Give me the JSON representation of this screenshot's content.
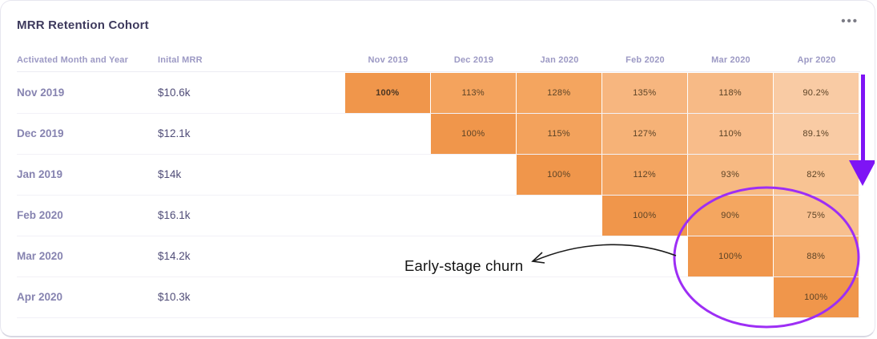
{
  "card": {
    "title": "MRR Retention Cohort",
    "menu_glyph": "•••"
  },
  "table": {
    "activated_header": "Activated Month and Year",
    "mrr_header": "Inital MRR",
    "month_headers": [
      "Nov 2019",
      "Dec 2019",
      "Jan 2020",
      "Feb 2020",
      "Mar 2020",
      "Apr 2020"
    ],
    "rows": [
      {
        "label": "Nov 2019",
        "mrr": "$10.6k",
        "cells": [
          {
            "col": 0,
            "value": "100%",
            "color": "#F0964B",
            "bold": true
          },
          {
            "col": 1,
            "value": "113%",
            "color": "#F4A35D",
            "bold": false
          },
          {
            "col": 2,
            "value": "128%",
            "color": "#F4A55F",
            "bold": false
          },
          {
            "col": 3,
            "value": "135%",
            "color": "#F7B67F",
            "bold": false
          },
          {
            "col": 4,
            "value": "118%",
            "color": "#F7BA86",
            "bold": false
          },
          {
            "col": 5,
            "value": "90.2%",
            "color": "#F9CBA4",
            "bold": false
          }
        ]
      },
      {
        "label": "Dec 2019",
        "mrr": "$12.1k",
        "cells": [
          {
            "col": 1,
            "value": "100%",
            "color": "#F0964B",
            "bold": false
          },
          {
            "col": 2,
            "value": "115%",
            "color": "#F3A25C",
            "bold": false
          },
          {
            "col": 3,
            "value": "127%",
            "color": "#F6B277",
            "bold": false
          },
          {
            "col": 4,
            "value": "110%",
            "color": "#F8BC8A",
            "bold": false
          },
          {
            "col": 5,
            "value": "89.1%",
            "color": "#F9CBA4",
            "bold": false
          }
        ]
      },
      {
        "label": "Jan 2019",
        "mrr": "$14k",
        "cells": [
          {
            "col": 2,
            "value": "100%",
            "color": "#F0964B",
            "bold": false
          },
          {
            "col": 3,
            "value": "112%",
            "color": "#F4A561",
            "bold": false
          },
          {
            "col": 4,
            "value": "93%",
            "color": "#F7B982",
            "bold": false
          },
          {
            "col": 5,
            "value": "82%",
            "color": "#F8C393",
            "bold": false
          }
        ]
      },
      {
        "label": "Feb 2020",
        "mrr": "$16.1k",
        "cells": [
          {
            "col": 3,
            "value": "100%",
            "color": "#F0964B",
            "bold": false
          },
          {
            "col": 4,
            "value": "90%",
            "color": "#F4A660",
            "bold": false
          },
          {
            "col": 5,
            "value": "75%",
            "color": "#F8BF8E",
            "bold": false
          }
        ]
      },
      {
        "label": "Mar 2020",
        "mrr": "$14.2k",
        "cells": [
          {
            "col": 4,
            "value": "100%",
            "color": "#F0964B",
            "bold": false
          },
          {
            "col": 5,
            "value": "88%",
            "color": "#F5AB6A",
            "bold": false
          }
        ]
      },
      {
        "label": "Apr 2020",
        "mrr": "$10.3k",
        "cells": [
          {
            "col": 5,
            "value": "100%",
            "color": "#F0964B",
            "bold": false
          }
        ]
      }
    ]
  },
  "annotation": {
    "label": "Early-stage churn"
  },
  "colors": {
    "arrow_purple": "#7E14F5",
    "ellipse_purple": "#9D2EF5",
    "annotation_black": "#1a1a1a",
    "cell_dark_orange": "#F0964B",
    "cell_light_orange": "#F9CBA4"
  },
  "chart_data": {
    "type": "heatmap",
    "title": "MRR Retention Cohort",
    "row_label_header": "Activated Month and Year",
    "row_value_header": "Inital MRR",
    "columns": [
      "Nov 2019",
      "Dec 2019",
      "Jan 2020",
      "Feb 2020",
      "Mar 2020",
      "Apr 2020"
    ],
    "rows": [
      {
        "label": "Nov 2019",
        "initial_mrr": "$10.6k",
        "values": [
          100,
          113,
          128,
          135,
          118,
          90.2
        ]
      },
      {
        "label": "Dec 2019",
        "initial_mrr": "$12.1k",
        "values": [
          null,
          100,
          115,
          127,
          110,
          89.1
        ]
      },
      {
        "label": "Jan 2019",
        "initial_mrr": "$14k",
        "values": [
          null,
          null,
          100,
          112,
          93,
          82
        ]
      },
      {
        "label": "Feb 2020",
        "initial_mrr": "$16.1k",
        "values": [
          null,
          null,
          null,
          100,
          90,
          75
        ]
      },
      {
        "label": "Mar 2020",
        "initial_mrr": "$14.2k",
        "values": [
          null,
          null,
          null,
          null,
          100,
          88
        ]
      },
      {
        "label": "Apr 2020",
        "initial_mrr": "$10.3k",
        "values": [
          null,
          null,
          null,
          null,
          null,
          100
        ]
      }
    ],
    "annotations": [
      {
        "text": "Early-stage churn",
        "target": "bottom-right circled cells (Mar 2020 / Apr 2020 columns, rows Feb–Apr 2020)"
      },
      {
        "shape": "down-arrow",
        "position": "right edge, rows 1-3"
      },
      {
        "shape": "ellipse-highlight",
        "position": "bottom-right cells"
      }
    ],
    "units": "%",
    "legend": "off",
    "grid": "off"
  }
}
